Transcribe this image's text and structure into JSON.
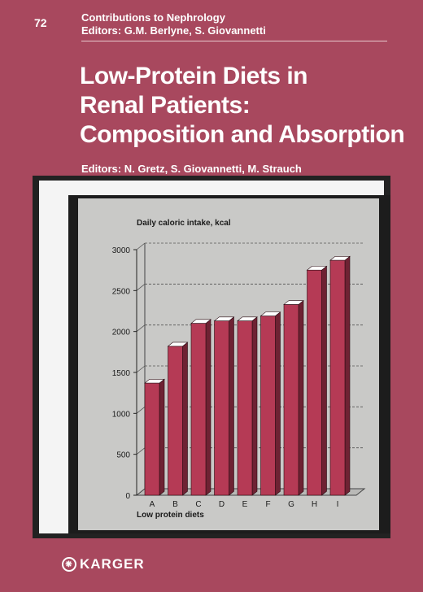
{
  "series": {
    "number": "72",
    "name": "Contributions to Nephrology",
    "editors": "Editors: G.M. Berlyne, S. Giovannetti"
  },
  "book": {
    "title_lines": [
      "Low-Protein Diets in",
      "Renal Patients:",
      "Composition and Absorption"
    ],
    "editors": "Editors: N. Gretz, S. Giovannetti, M. Strauch"
  },
  "publisher": {
    "name": "KARGER",
    "logo_icon": "karger-seal-icon"
  },
  "colors": {
    "cover": "#a8485e",
    "bar_front": "#b53a55",
    "bar_top": "#ffffff",
    "bar_side": "#6e2233",
    "panel": "#c9c9c7"
  },
  "chart_data": {
    "type": "bar",
    "title": "Daily caloric intake, kcal",
    "xlabel": "Low protein diets",
    "ylabel": "",
    "categories": [
      "A",
      "B",
      "C",
      "D",
      "E",
      "F",
      "G",
      "H",
      "I"
    ],
    "values": [
      1370,
      1820,
      2100,
      2130,
      2130,
      2190,
      2330,
      2750,
      2870
    ],
    "ylim": [
      0,
      3000
    ],
    "yticks": [
      "0",
      "500",
      "1000",
      "1500",
      "2000",
      "2500",
      "3000"
    ],
    "grid": true,
    "style": "3d-bars"
  }
}
